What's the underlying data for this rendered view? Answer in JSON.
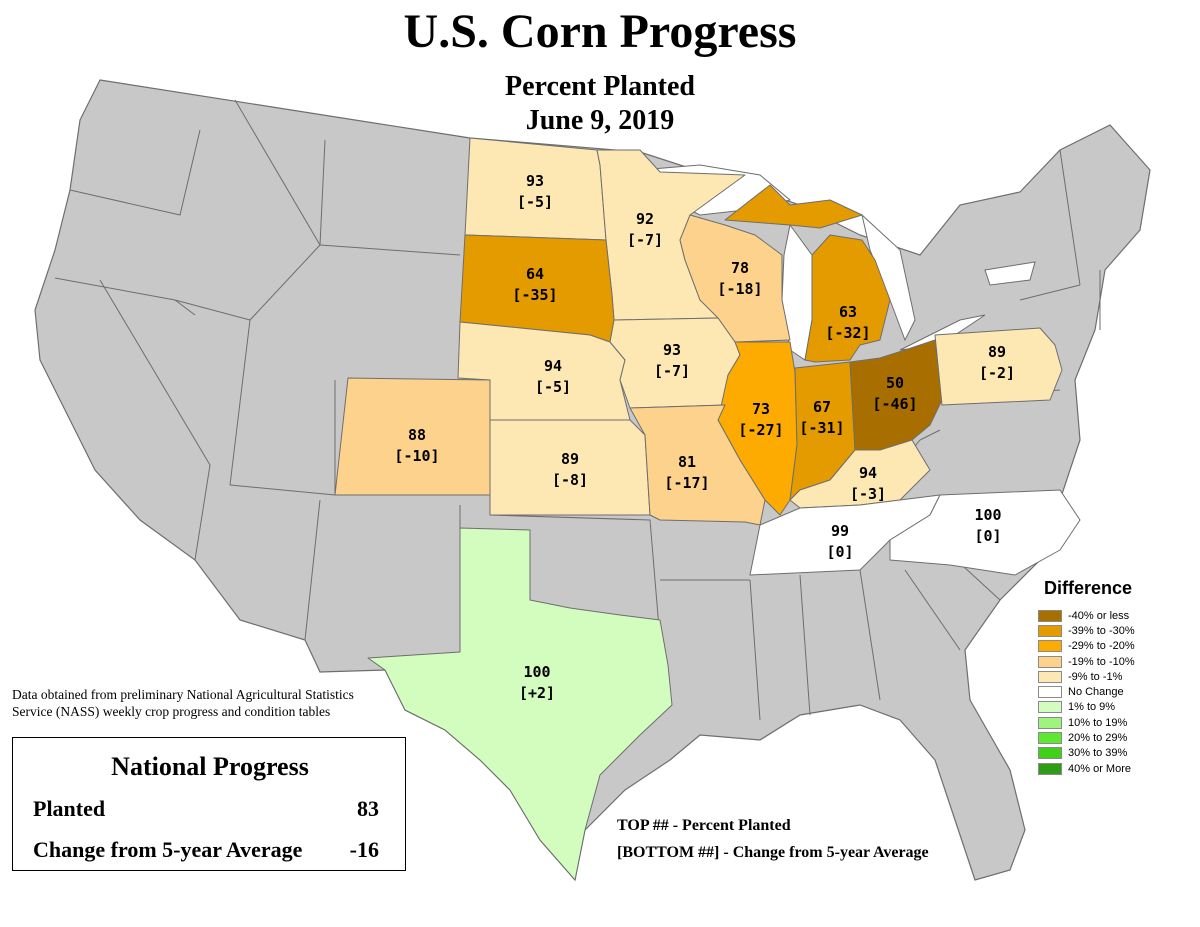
{
  "title": "U.S. Corn Progress",
  "subtitle": "Percent Planted",
  "date": "June 9, 2019",
  "colors": {
    "background_state": "#c8c8c8",
    "state_border": "#6e6e6e",
    "lake": "#ffffff"
  },
  "states": [
    {
      "name": "North Dakota",
      "planted": "93",
      "diff": "[-5]",
      "color": "#fde8b4"
    },
    {
      "name": "Minnesota",
      "planted": "92",
      "diff": "[-7]",
      "color": "#fde8b4"
    },
    {
      "name": "South Dakota",
      "planted": "64",
      "diff": "[-35]",
      "color": "#e39b00"
    },
    {
      "name": "Wisconsin",
      "planted": "78",
      "diff": "[-18]",
      "color": "#fdd28c"
    },
    {
      "name": "Michigan",
      "planted": "63",
      "diff": "[-32]",
      "color": "#e39b00"
    },
    {
      "name": "Nebraska",
      "planted": "94",
      "diff": "[-5]",
      "color": "#fde8b4"
    },
    {
      "name": "Iowa",
      "planted": "93",
      "diff": "[-7]",
      "color": "#fde8b4"
    },
    {
      "name": "Illinois",
      "planted": "73",
      "diff": "[-27]",
      "color": "#fdab00"
    },
    {
      "name": "Indiana",
      "planted": "67",
      "diff": "[-31]",
      "color": "#e39b00"
    },
    {
      "name": "Ohio",
      "planted": "50",
      "diff": "[-46]",
      "color": "#a86e00"
    },
    {
      "name": "Pennsylvania",
      "planted": "89",
      "diff": "[-2]",
      "color": "#fde8b4"
    },
    {
      "name": "Colorado",
      "planted": "88",
      "diff": "[-10]",
      "color": "#fdd28c"
    },
    {
      "name": "Kansas",
      "planted": "89",
      "diff": "[-8]",
      "color": "#fde8b4"
    },
    {
      "name": "Missouri",
      "planted": "81",
      "diff": "[-17]",
      "color": "#fdd28c"
    },
    {
      "name": "Kentucky",
      "planted": "94",
      "diff": "[-3]",
      "color": "#fde8b4"
    },
    {
      "name": "Tennessee",
      "planted": "99",
      "diff": "[0]",
      "color": "#ffffff"
    },
    {
      "name": "North Carolina",
      "planted": "100",
      "diff": "[0]",
      "color": "#ffffff"
    },
    {
      "name": "Texas",
      "planted": "100",
      "diff": "[+2]",
      "color": "#d3fcbf"
    }
  ],
  "source_note": "Data obtained from preliminary National Agricultural Statistics Service (NASS) weekly crop progress and condition tables",
  "national": {
    "title": "National Progress",
    "planted_label": "Planted",
    "planted_value": "83",
    "change_label": "Change from 5-year Average",
    "change_value": "-16"
  },
  "key": {
    "top": "TOP ## - Percent Planted",
    "bottom": "[BOTTOM ##] - Change from 5-year Average"
  },
  "legend": {
    "title": "Difference",
    "items": [
      {
        "label": "-40% or less",
        "color": "#a86e00"
      },
      {
        "label": "-39% to -30%",
        "color": "#e39b00"
      },
      {
        "label": "-29% to -20%",
        "color": "#fdab00"
      },
      {
        "label": "-19% to -10%",
        "color": "#fdd28c"
      },
      {
        "label": "-9% to -1%",
        "color": "#fde8b4"
      },
      {
        "label": "No Change",
        "color": "#ffffff"
      },
      {
        "label": "1% to 9%",
        "color": "#d3fcbf"
      },
      {
        "label": "10% to 19%",
        "color": "#9ef57e"
      },
      {
        "label": "20% to 29%",
        "color": "#5ee833"
      },
      {
        "label": "30% to 39%",
        "color": "#3fd11a"
      },
      {
        "label": "40% or More",
        "color": "#2e9c14"
      }
    ]
  }
}
